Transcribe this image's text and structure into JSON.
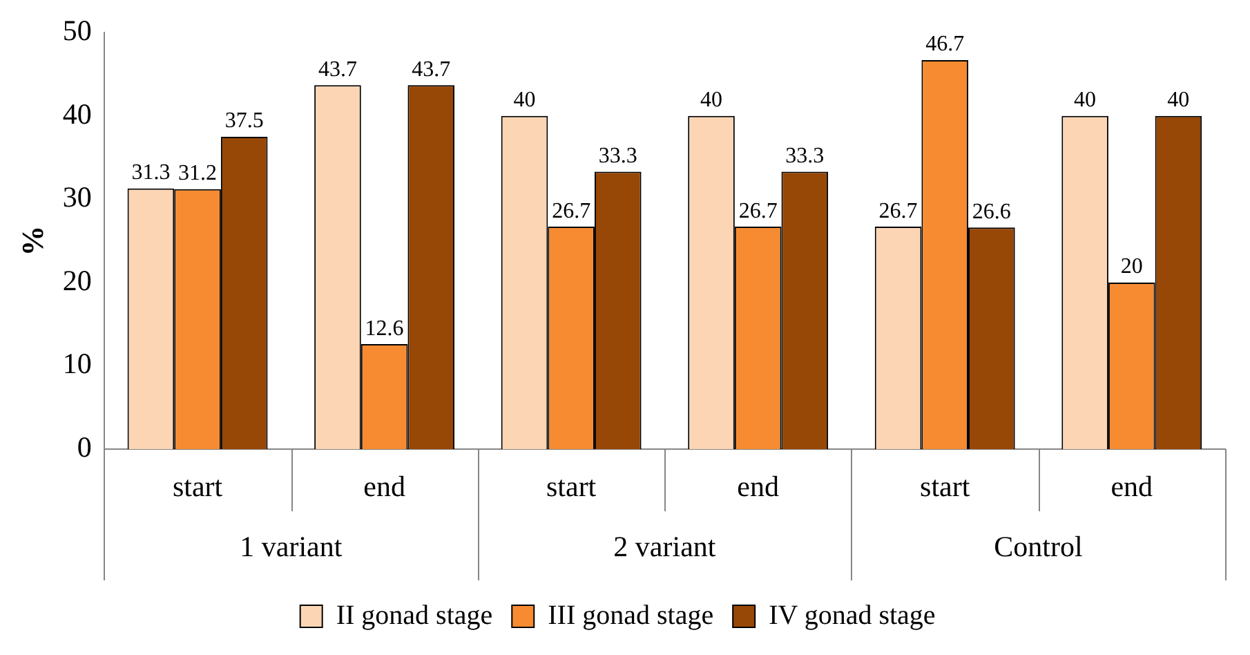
{
  "chart_data": {
    "type": "bar",
    "ylabel": "%",
    "categories": [
      "start",
      "end",
      "start",
      "end",
      "start",
      "end"
    ],
    "annotations": [
      "1 variant",
      "2 variant",
      "Control"
    ],
    "series": [
      {
        "name": "II gonad stage",
        "color": "#fcd5b5",
        "values": [
          31.3,
          43.7,
          40,
          40,
          26.7,
          40
        ]
      },
      {
        "name": "III gonad stage",
        "color": "#f68b32",
        "values": [
          31.2,
          12.6,
          26.7,
          26.7,
          46.7,
          20
        ]
      },
      {
        "name": "IV gonad stage",
        "color": "#974706",
        "values": [
          37.5,
          43.7,
          33.3,
          33.3,
          26.6,
          40
        ]
      }
    ],
    "ylim": [
      0,
      50
    ],
    "yticks": [
      0,
      10,
      20,
      30,
      40,
      50
    ],
    "grid": false,
    "legend": "bottom",
    "data_labels": true
  }
}
